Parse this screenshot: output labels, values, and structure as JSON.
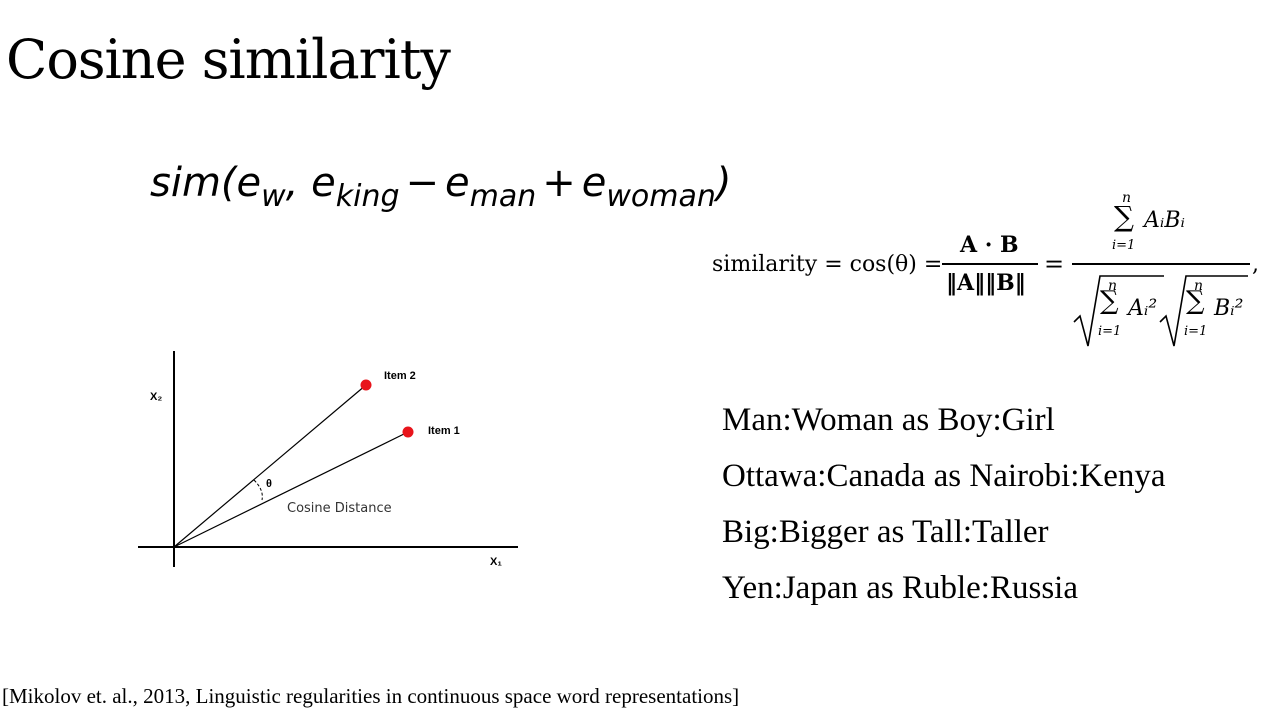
{
  "slide": {
    "title": "Cosine similarity",
    "sim_formula": {
      "func": "sim(",
      "e1": "e",
      "e1_sub": "w",
      "comma": ", ",
      "e2": "e",
      "e2_sub": "king",
      "minus": "−",
      "e3": "e",
      "e3_sub": "man",
      "plus": "+",
      "e4": "e",
      "e4_sub": "woman",
      "close": ")"
    },
    "cosine_formula": {
      "lhs": "similarity = cos(θ) =",
      "frac1_num": "A · B",
      "frac1_den": "‖A‖‖B‖",
      "eq": "=",
      "sum_top": "n",
      "sum_sym": "∑",
      "sum_bottom": "i=1",
      "num_terms": "AᵢBᵢ",
      "den_term1": "Aᵢ²",
      "den_term2": "Bᵢ²",
      "trailing": ","
    },
    "diagram": {
      "axis_x_label": "X₁",
      "axis_y_label": "X₂",
      "item1_label": "Item 1",
      "item2_label": "Item 2",
      "theta_label": "θ",
      "distance_label": "Cosine Distance",
      "point_color": "#e8141b"
    },
    "analogies": [
      "Man:Woman as Boy:Girl",
      "Ottawa:Canada as Nairobi:Kenya",
      "Big:Bigger as Tall:Taller",
      "Yen:Japan as Ruble:Russia"
    ],
    "citation": "[Mikolov et. al., 2013, Linguistic regularities in continuous space word representations]"
  }
}
